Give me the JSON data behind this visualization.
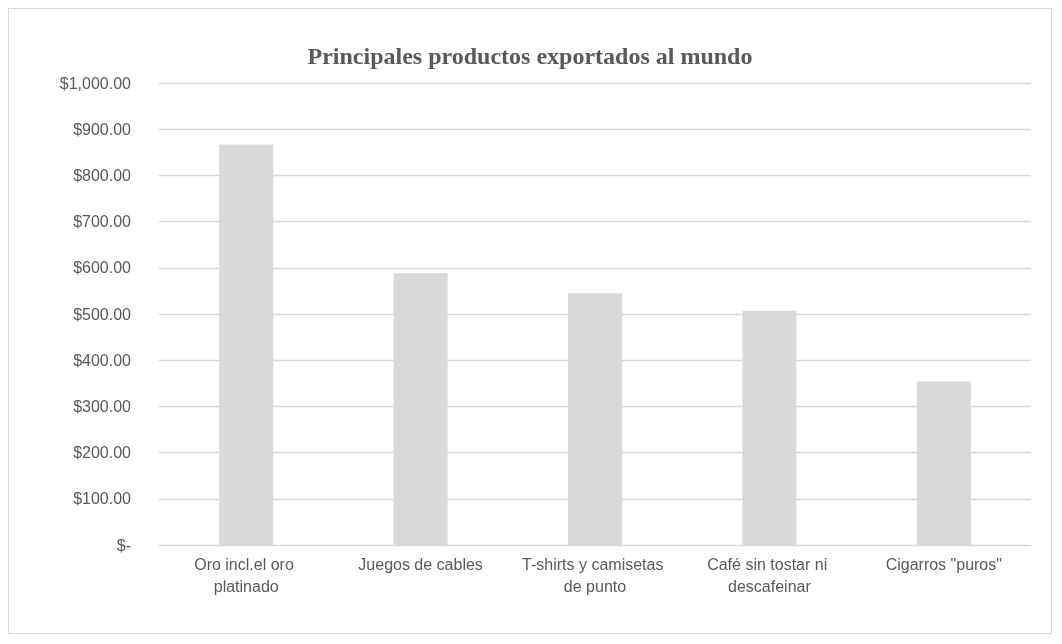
{
  "chart_data": {
    "type": "bar",
    "title": "Principales productos exportados al mundo",
    "categories": [
      "Oro incl.el oro platinado",
      "Juegos de cables",
      "T-shirts y camisetas de punto",
      "Café sin tostar ni descafeinar",
      "Cigarros \"puros\""
    ],
    "values": [
      867,
      588,
      545,
      507,
      354
    ],
    "color": "#d9d9d9",
    "ylim": [
      0,
      1000
    ],
    "yticks": [
      {
        "value": 0,
        "label": "$-"
      },
      {
        "value": 100,
        "label": "$100.00"
      },
      {
        "value": 200,
        "label": "$200.00"
      },
      {
        "value": 300,
        "label": "$300.00"
      },
      {
        "value": 400,
        "label": "$400.00"
      },
      {
        "value": 500,
        "label": "$500.00"
      },
      {
        "value": 600,
        "label": "$600.00"
      },
      {
        "value": 700,
        "label": "$700.00"
      },
      {
        "value": 800,
        "label": "$800.00"
      },
      {
        "value": 900,
        "label": "$900.00"
      },
      {
        "value": 1000,
        "label": "$1,000.00"
      }
    ],
    "grid": true
  }
}
